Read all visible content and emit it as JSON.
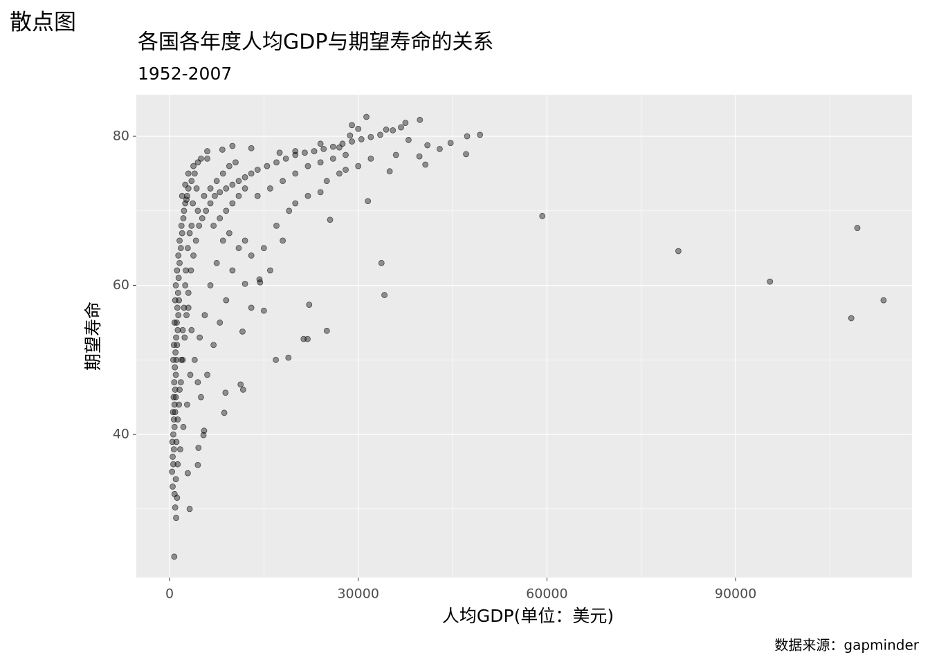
{
  "page_label": "散点图",
  "chart_data": {
    "type": "scatter",
    "title": "各国各年度人均GDP与期望寿命的关系",
    "subtitle": "1952-2007",
    "x_label": "人均GDP(单位：美元)",
    "y_label": "期望寿命",
    "caption": "数据来源：gapminder",
    "color": "#000000",
    "alpha": 0.4,
    "grid": true,
    "xlim": [
      -5280,
      118040
    ],
    "ylim": [
      20.8,
      85.57
    ],
    "xticks": [
      0,
      30000,
      60000,
      90000
    ],
    "yticks": [
      40,
      60,
      80
    ],
    "x_minor_ticks": [
      15000,
      45000,
      75000,
      105000
    ],
    "y_minor_ticks": [
      30,
      50,
      70
    ],
    "x": [
      59265,
      80895,
      95458,
      108382,
      109348,
      113523,
      49357,
      47306,
      47143,
      44684,
      42952,
      41000,
      40676,
      39725,
      39800,
      37506,
      36798,
      34435,
      35000,
      33693,
      34168,
      31540,
      25523,
      25010,
      22200,
      21950,
      21320,
      18900,
      16900,
      15000,
      14400,
      14300,
      13000,
      12000,
      11600,
      11700,
      11300,
      8900,
      8700,
      5500,
      5400,
      4600,
      4500,
      3200,
      2900,
      750,
      1050,
      900,
      1200,
      31300,
      28700,
      27000,
      24000,
      20000,
      17500,
      13000,
      10000,
      8400,
      6000,
      400,
      500,
      600,
      700,
      800,
      900,
      1000,
      1100,
      1200,
      1300,
      1400,
      1500,
      450,
      550,
      650,
      750,
      850,
      950,
      1050,
      1150,
      1250,
      1350,
      1450,
      1600,
      1800,
      2000,
      2200,
      2500,
      2800,
      3000,
      3500,
      4000,
      500,
      600,
      700,
      800,
      900,
      1000,
      600,
      700,
      800,
      900,
      1000,
      1200,
      1400,
      1600,
      1900,
      2300,
      2700,
      1500,
      1800,
      2100,
      2400,
      2700,
      3000,
      3400,
      3800,
      4200,
      4700,
      5200,
      5800,
      6500,
      7200,
      8000,
      9000,
      10000,
      11000,
      12000,
      13000,
      14000,
      15500,
      17000,
      18500,
      20000,
      21500,
      23000,
      24500,
      26000,
      27500,
      29000,
      30500,
      32000,
      33500,
      3500,
      4500,
      5500,
      6500,
      7500,
      8500,
      9500,
      10500,
      2000,
      2500,
      3000,
      3800,
      4500,
      5000,
      6000,
      7000,
      8000,
      9000,
      10000,
      11000,
      12000,
      14000,
      16000,
      18000,
      20000,
      22000,
      24000,
      26000,
      28000,
      30000,
      32000,
      2500,
      3000,
      3500,
      4000,
      4500,
      5000,
      6000,
      7000,
      8000,
      9000,
      10000,
      11000,
      12000,
      6500,
      7500,
      8500,
      9500,
      4800,
      5600,
      3300,
      2800,
      2200,
      1700,
      1300,
      1000,
      800,
      1100,
      1300,
      1600,
      1900,
      2100,
      2300,
      2600,
      2900,
      3200,
      3700,
      4300,
      20000,
      22000,
      25000,
      27000,
      15000,
      17000,
      19000,
      13000,
      16000,
      18000,
      24000,
      28000,
      36000,
      38000,
      35500,
      30000,
      29000
    ],
    "values": [
      69.3,
      64.6,
      60.5,
      55.6,
      67.7,
      58.0,
      80.2,
      80.0,
      77.6,
      79.1,
      78.3,
      78.8,
      76.2,
      77.3,
      82.2,
      81.8,
      81.2,
      80.9,
      75.3,
      63.0,
      58.7,
      71.3,
      68.8,
      53.9,
      57.4,
      52.8,
      52.8,
      50.3,
      50.0,
      56.6,
      60.4,
      60.8,
      57.0,
      60.2,
      53.8,
      46.0,
      46.7,
      45.6,
      42.9,
      40.5,
      39.9,
      38.2,
      35.9,
      30.0,
      34.8,
      23.6,
      28.8,
      30.2,
      31.5,
      82.6,
      80.1,
      78.5,
      79.0,
      78.0,
      77.8,
      78.4,
      78.7,
      78.2,
      77.0,
      35,
      37,
      40,
      42,
      44,
      46,
      48,
      50,
      52,
      54,
      56,
      58,
      39,
      43,
      45,
      47,
      49,
      51,
      53,
      55,
      57,
      59,
      61,
      63,
      65,
      67,
      69,
      71,
      72,
      73,
      74,
      75,
      33,
      36,
      38,
      41,
      43,
      45,
      50,
      52,
      55,
      58,
      60,
      62,
      64,
      66,
      68,
      70,
      71.5,
      44,
      47,
      50,
      53,
      56,
      59,
      62,
      64,
      66,
      68,
      69,
      70,
      71,
      72,
      72.5,
      73,
      73.5,
      74,
      74.5,
      75,
      75.5,
      76,
      76.5,
      77,
      77.5,
      77.8,
      78,
      78.3,
      78.6,
      79,
      79.3,
      79.6,
      79.9,
      80.2,
      68,
      70,
      72,
      73,
      74,
      75,
      76,
      76.5,
      72,
      73.5,
      75,
      76,
      76.5,
      77,
      78,
      68,
      69,
      70,
      71,
      72,
      73,
      72,
      73,
      74,
      75,
      76,
      76.5,
      77,
      77.5,
      76,
      77,
      60,
      57,
      54,
      50,
      47,
      45,
      48,
      52,
      55,
      58,
      62,
      65,
      66,
      60,
      63,
      66,
      67,
      53,
      56,
      48,
      44,
      41,
      38,
      36,
      34,
      32,
      39,
      42,
      46,
      50,
      54,
      57,
      62,
      65,
      67,
      71,
      73,
      71,
      72,
      74,
      75,
      65,
      68,
      70,
      64,
      62,
      66,
      72.5,
      75.5,
      77.5,
      79.5,
      80.8,
      81,
      81.5
    ]
  }
}
